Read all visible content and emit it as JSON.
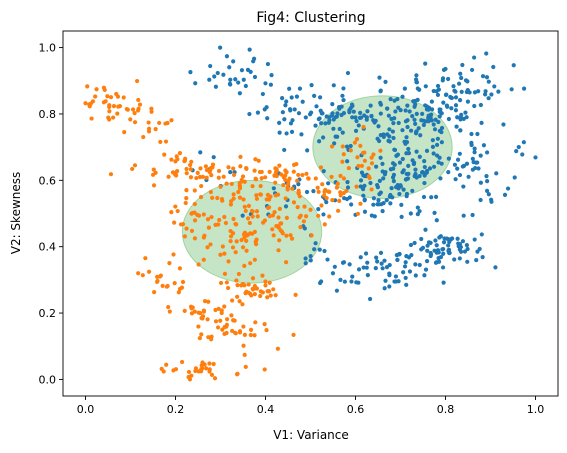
{
  "chart_data": {
    "type": "scatter",
    "title": "Fig4: Clustering",
    "xlabel": "V1: Variance",
    "ylabel": "V2: Skewness",
    "xlim": [
      -0.05,
      1.05
    ],
    "ylim": [
      -0.05,
      1.05
    ],
    "xticks": [
      "0.0",
      "0.2",
      "0.4",
      "0.6",
      "0.8",
      "1.0"
    ],
    "yticks": [
      "0.0",
      "0.2",
      "0.4",
      "0.6",
      "0.8",
      "1.0"
    ],
    "grid": false,
    "colors": {
      "cluster_a": "#1f77b4",
      "cluster_b": "#ff7f0e",
      "centroid_fill": "#2ca02c"
    },
    "centroids": [
      {
        "x": 0.66,
        "y": 0.7,
        "r": 0.155
      },
      {
        "x": 0.37,
        "y": 0.445,
        "r": 0.155
      }
    ],
    "series": [
      {
        "color": "#1f77b4",
        "regions": [
          {
            "cx": 0.35,
            "cy": 0.93,
            "sx": 0.04,
            "sy": 0.035,
            "n": 32
          },
          {
            "cx": 0.44,
            "cy": 0.81,
            "sx": 0.03,
            "sy": 0.03,
            "n": 20
          },
          {
            "cx": 0.57,
            "cy": 0.79,
            "sx": 0.07,
            "sy": 0.05,
            "n": 80
          },
          {
            "cx": 0.73,
            "cy": 0.8,
            "sx": 0.07,
            "sy": 0.06,
            "n": 120
          },
          {
            "cx": 0.84,
            "cy": 0.86,
            "sx": 0.05,
            "sy": 0.05,
            "n": 55
          },
          {
            "cx": 0.7,
            "cy": 0.62,
            "sx": 0.08,
            "sy": 0.05,
            "n": 110
          },
          {
            "cx": 0.86,
            "cy": 0.62,
            "sx": 0.04,
            "sy": 0.05,
            "n": 30
          },
          {
            "cx": 0.63,
            "cy": 0.53,
            "sx": 0.06,
            "sy": 0.03,
            "n": 40
          },
          {
            "cx": 0.8,
            "cy": 0.39,
            "sx": 0.04,
            "sy": 0.025,
            "n": 70
          },
          {
            "cx": 0.66,
            "cy": 0.33,
            "sx": 0.06,
            "sy": 0.03,
            "n": 55
          },
          {
            "cx": 0.52,
            "cy": 0.37,
            "sx": 0.03,
            "sy": 0.03,
            "n": 12
          },
          {
            "cx": 0.45,
            "cy": 0.55,
            "sx": 0.04,
            "sy": 0.04,
            "n": 18
          },
          {
            "cx": 0.95,
            "cy": 0.68,
            "sx": 0.03,
            "sy": 0.04,
            "n": 6
          },
          {
            "cx": 0.28,
            "cy": 0.63,
            "sx": 0.03,
            "sy": 0.03,
            "n": 8
          }
        ]
      },
      {
        "color": "#ff7f0e",
        "regions": [
          {
            "cx": 0.06,
            "cy": 0.83,
            "sx": 0.04,
            "sy": 0.03,
            "n": 35
          },
          {
            "cx": 0.14,
            "cy": 0.76,
            "sx": 0.03,
            "sy": 0.03,
            "n": 18
          },
          {
            "cx": 0.22,
            "cy": 0.63,
            "sx": 0.05,
            "sy": 0.03,
            "n": 40
          },
          {
            "cx": 0.38,
            "cy": 0.6,
            "sx": 0.06,
            "sy": 0.03,
            "n": 45
          },
          {
            "cx": 0.35,
            "cy": 0.48,
            "sx": 0.08,
            "sy": 0.07,
            "n": 150
          },
          {
            "cx": 0.54,
            "cy": 0.55,
            "sx": 0.03,
            "sy": 0.04,
            "n": 25
          },
          {
            "cx": 0.6,
            "cy": 0.67,
            "sx": 0.03,
            "sy": 0.05,
            "n": 28
          },
          {
            "cx": 0.37,
            "cy": 0.27,
            "sx": 0.04,
            "sy": 0.02,
            "n": 40
          },
          {
            "cx": 0.17,
            "cy": 0.29,
            "sx": 0.03,
            "sy": 0.03,
            "n": 20
          },
          {
            "cx": 0.26,
            "cy": 0.2,
            "sx": 0.04,
            "sy": 0.02,
            "n": 25
          },
          {
            "cx": 0.33,
            "cy": 0.15,
            "sx": 0.05,
            "sy": 0.03,
            "n": 35
          },
          {
            "cx": 0.25,
            "cy": 0.025,
            "sx": 0.04,
            "sy": 0.015,
            "n": 30
          },
          {
            "cx": 0.45,
            "cy": 0.62,
            "sx": 0.03,
            "sy": 0.02,
            "n": 20
          }
        ]
      }
    ]
  }
}
